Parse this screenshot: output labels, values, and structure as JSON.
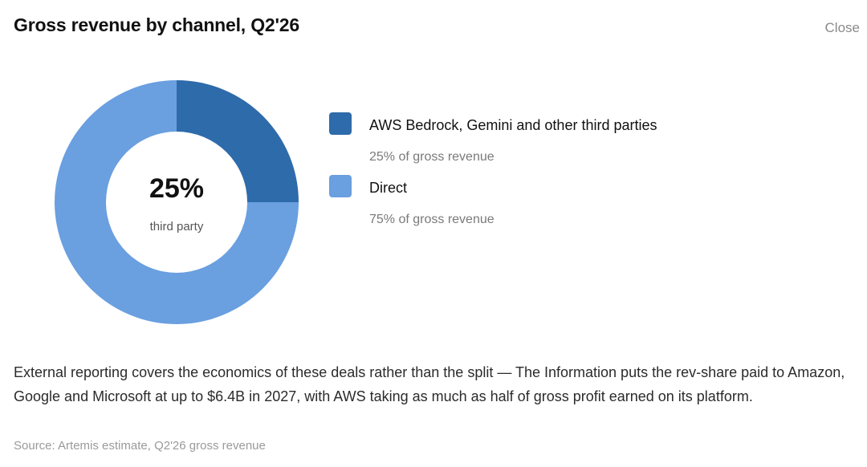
{
  "header": {
    "title": "Gross revenue by channel, Q2'26",
    "close_label": "Close"
  },
  "chart_data": {
    "type": "pie",
    "variant": "donut",
    "center_value": "25%",
    "center_label": "third party",
    "categories": [
      "AWS Bedrock, Gemini and other third parties",
      "Direct"
    ],
    "values": [
      25,
      75
    ],
    "colors": [
      "#2E6BAA",
      "#6A9FE0"
    ],
    "legend_placement": "right"
  },
  "legend": {
    "items": [
      {
        "label": "AWS Bedrock, Gemini and other third parties",
        "sub": "25% of gross revenue",
        "color": "#2E6BAA"
      },
      {
        "label": "Direct",
        "sub": "75% of gross revenue",
        "color": "#6A9FE0"
      }
    ]
  },
  "body": {
    "text": "External reporting covers the economics of these deals rather than the split — The Information puts the rev-share paid to Amazon, Google and Microsoft at up to $6.4B in 2027, with AWS taking as much as half of gross profit earned on its platform."
  },
  "footer": {
    "source": "Source: Artemis estimate, Q2'26 gross revenue"
  }
}
